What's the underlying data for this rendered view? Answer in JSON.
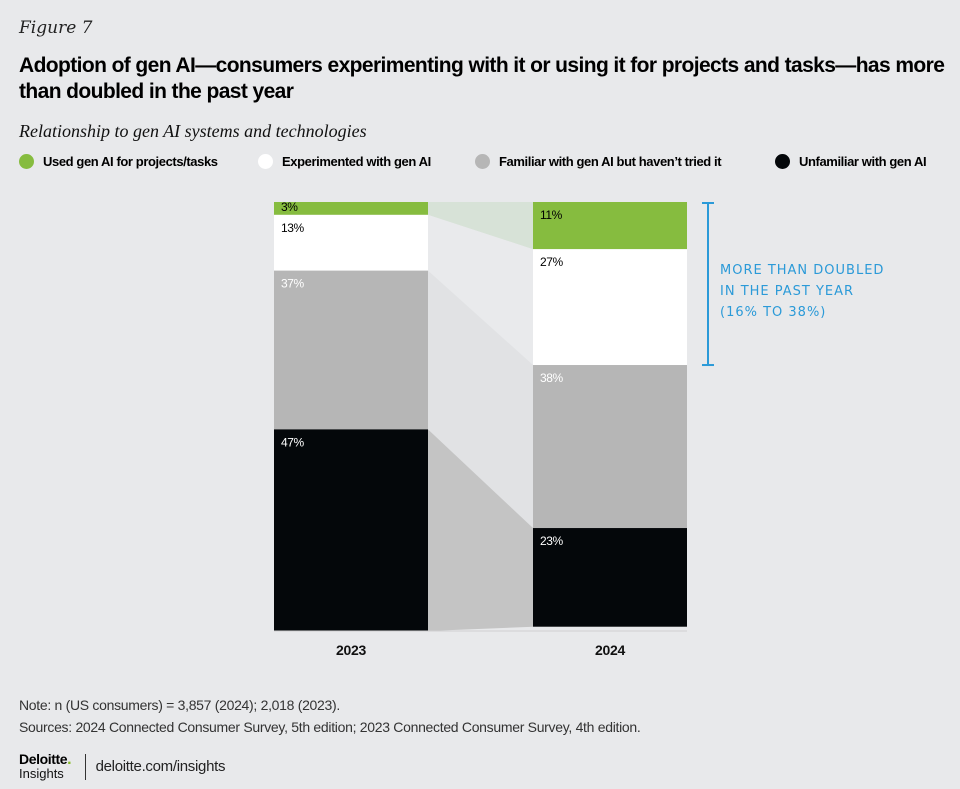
{
  "figure_label": "Figure 7",
  "title": "Adoption of gen AI—consumers experimenting with it or using it for projects and tasks—has more than doubled in the past year",
  "subtitle": "Relationship to gen AI systems and technologies",
  "colors": {
    "used": "#86bc3f",
    "experimented": "#ffffff",
    "familiar": "#b6b6b6",
    "unfamiliar": "#04070a",
    "annotation": "#2b9ad8",
    "band_used": "#d7e2d7",
    "band_experimented": "#e9eaec",
    "band_familiar": "#e1e2e4",
    "band_unfamiliar": "#c4c4c4"
  },
  "chart_data": {
    "type": "bar",
    "stacked": true,
    "title": "Adoption of gen AI—consumers experimenting with it or using it for projects and tasks—has more than doubled in the past year",
    "subtitle": "Relationship to gen AI systems and technologies",
    "xlabel": "",
    "ylabel": "",
    "ylim": [
      0,
      100
    ],
    "categories": [
      "2023",
      "2024"
    ],
    "legend_position": "top",
    "series": [
      {
        "key": "used",
        "name": "Used gen AI for projects/tasks",
        "values": [
          3,
          11
        ],
        "labels": [
          "3%",
          "11%"
        ],
        "label_color": "#000000"
      },
      {
        "key": "experimented",
        "name": "Experimented with gen AI",
        "values": [
          13,
          27
        ],
        "labels": [
          "13%",
          "27%"
        ],
        "label_color": "#000000"
      },
      {
        "key": "familiar",
        "name": "Familiar with gen AI but haven’t tried it",
        "values": [
          37,
          38
        ],
        "labels": [
          "37%",
          "38%"
        ],
        "label_color": "#ffffff"
      },
      {
        "key": "unfamiliar",
        "name": "Unfamiliar with gen AI",
        "values": [
          47,
          23
        ],
        "labels": [
          "47%",
          "23%"
        ],
        "label_color": "#ffffff"
      }
    ],
    "annotation": {
      "lines": [
        "MORE THAN DOUBLED",
        "IN THE PAST YEAR",
        "(16% TO 38%)"
      ],
      "from_value": 16,
      "to_value": 38,
      "applies_to": "2024"
    }
  },
  "notes": {
    "note": "Note: n (US consumers) = 3,857 (2024); 2,018 (2023).",
    "sources": "Sources: 2024 Connected Consumer Survey, 5th edition; 2023 Connected Consumer Survey, 4th edition."
  },
  "footer": {
    "brand_name": "Deloitte",
    "brand_dot": ".",
    "brand_sub": "Insights",
    "link": "deloitte.com/insights"
  }
}
